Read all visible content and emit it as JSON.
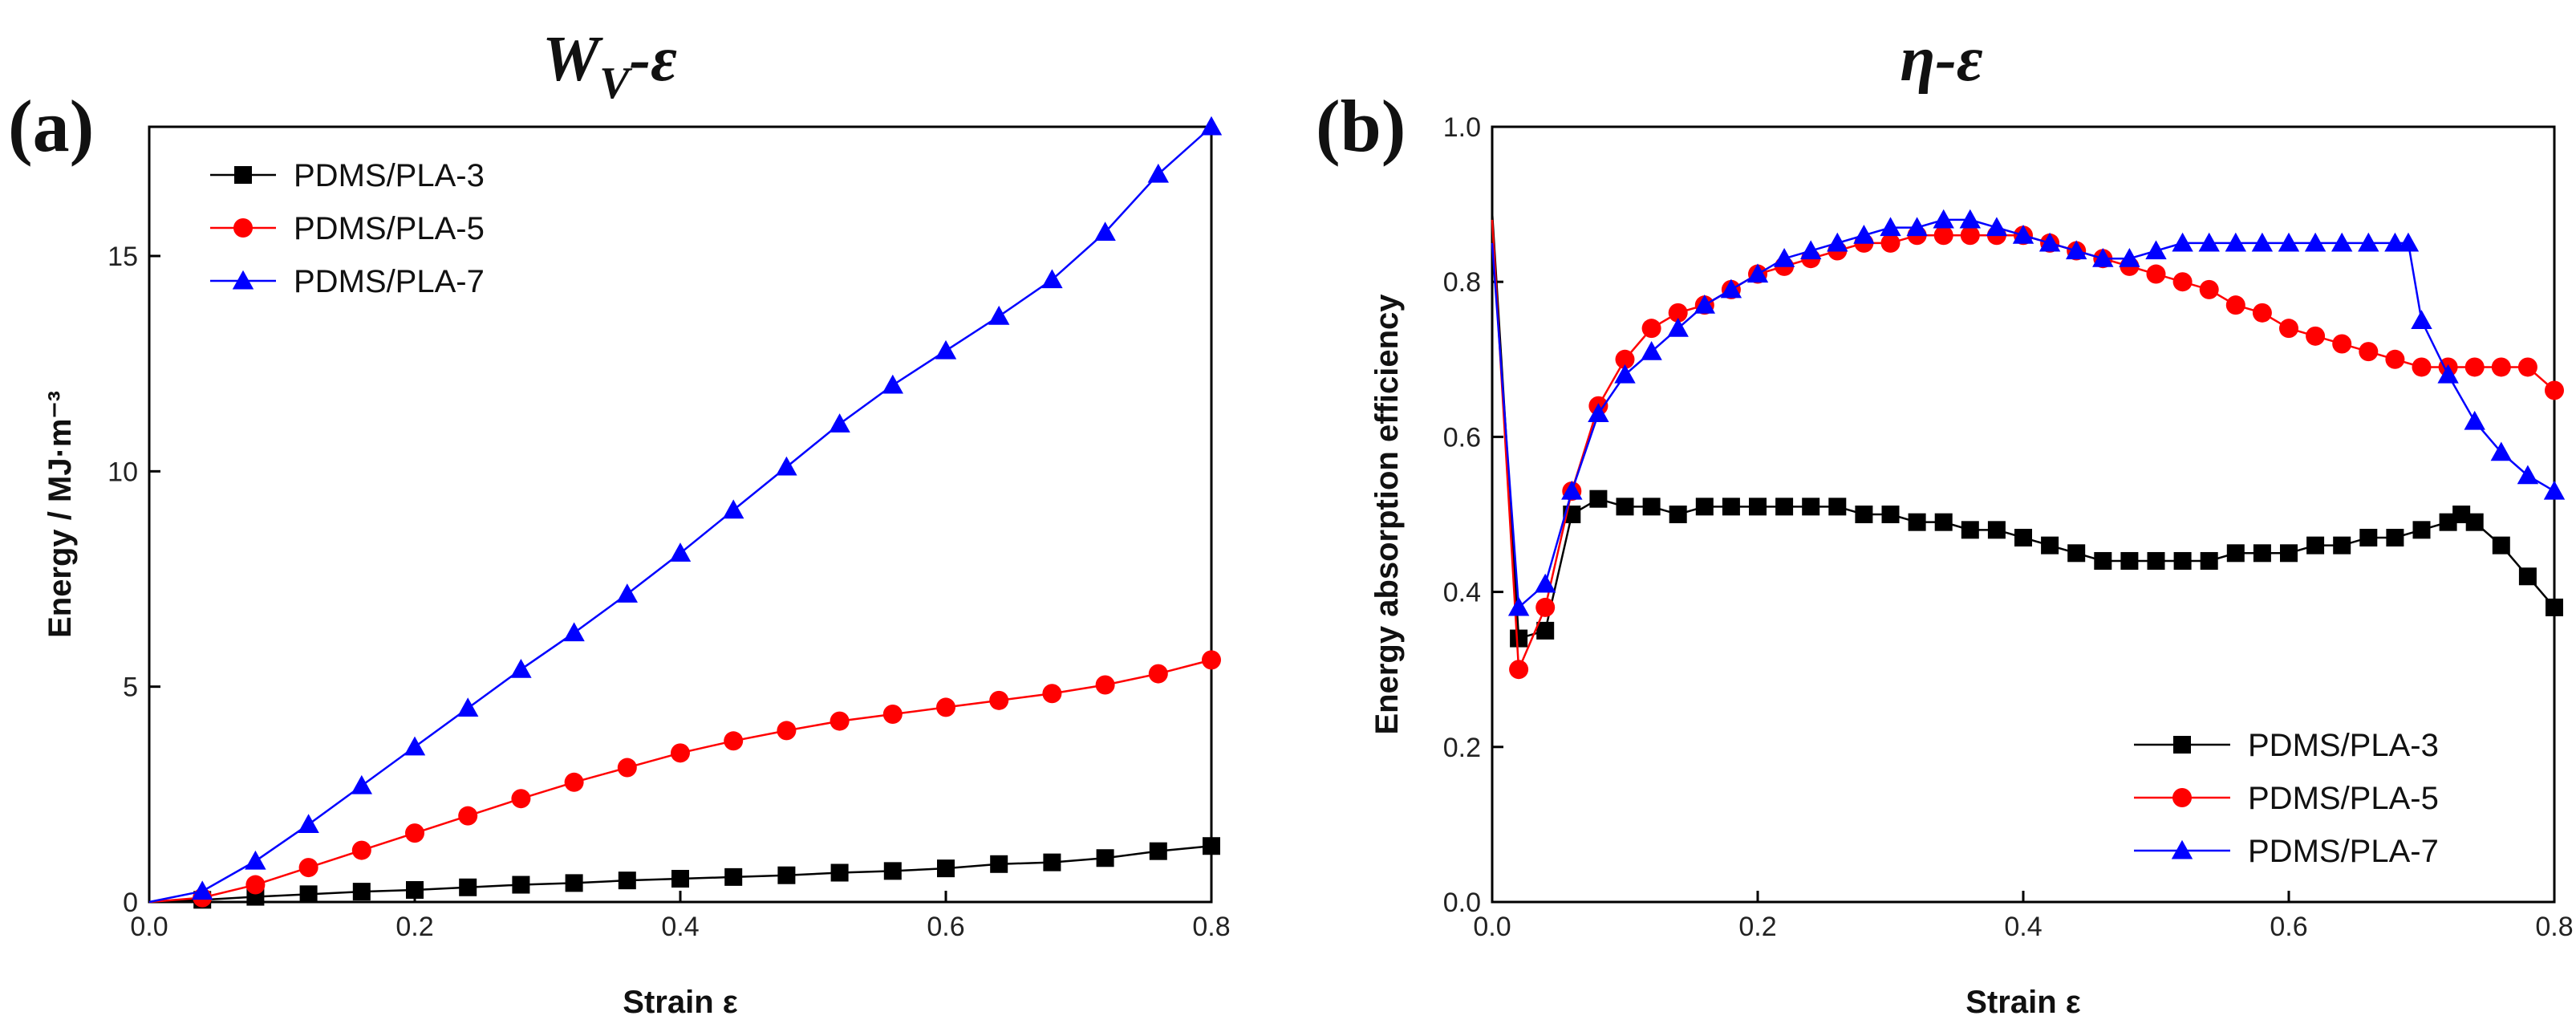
{
  "chart_data": [
    {
      "type": "line",
      "panel_tag": "(a)",
      "title": {
        "main": "W",
        "sub": "V",
        "suffix": "-ε"
      },
      "xlabel": "Strain ε",
      "ylabel": "Energy / MJ·m⁻³",
      "xlim": [
        0,
        0.8
      ],
      "ylim": [
        0,
        18
      ],
      "xticks": [
        0.0,
        0.2,
        0.4,
        0.6,
        0.8
      ],
      "xtick_labels": [
        "0.0",
        "0.2",
        "0.4",
        "0.6",
        "0.8"
      ],
      "yticks": [
        0,
        5,
        10,
        15
      ],
      "ytick_labels": [
        "0",
        "5",
        "10",
        "15"
      ],
      "grid": false,
      "legend": "top-left",
      "series": [
        {
          "name": "PDMS/PLA-3",
          "color": "#000000",
          "marker": "square",
          "x": [
            0,
            0.04,
            0.08,
            0.12,
            0.16,
            0.2,
            0.24,
            0.28,
            0.32,
            0.36,
            0.4,
            0.44,
            0.48,
            0.52,
            0.56,
            0.6,
            0.64,
            0.68,
            0.72,
            0.76,
            0.8
          ],
          "y": [
            0,
            0.05,
            0.12,
            0.18,
            0.24,
            0.28,
            0.34,
            0.4,
            0.44,
            0.5,
            0.54,
            0.58,
            0.62,
            0.68,
            0.72,
            0.78,
            0.88,
            0.92,
            1.02,
            1.18,
            1.3
          ]
        },
        {
          "name": "PDMS/PLA-5",
          "color": "#ff0000",
          "marker": "circle",
          "x": [
            0,
            0.04,
            0.08,
            0.12,
            0.16,
            0.2,
            0.24,
            0.28,
            0.32,
            0.36,
            0.4,
            0.44,
            0.48,
            0.52,
            0.56,
            0.6,
            0.64,
            0.68,
            0.72,
            0.76,
            0.8
          ],
          "y": [
            0,
            0.1,
            0.4,
            0.8,
            1.2,
            1.6,
            2.0,
            2.4,
            2.78,
            3.12,
            3.46,
            3.74,
            3.98,
            4.2,
            4.36,
            4.52,
            4.68,
            4.84,
            5.04,
            5.3,
            5.62
          ]
        },
        {
          "name": "PDMS/PLA-7",
          "color": "#0000ff",
          "marker": "triangle",
          "x": [
            0,
            0.04,
            0.08,
            0.12,
            0.16,
            0.2,
            0.24,
            0.28,
            0.32,
            0.36,
            0.4,
            0.44,
            0.48,
            0.52,
            0.56,
            0.6,
            0.64,
            0.68,
            0.72,
            0.76,
            0.8
          ],
          "y": [
            0,
            0.25,
            0.95,
            1.8,
            2.7,
            3.6,
            4.5,
            5.4,
            6.25,
            7.15,
            8.1,
            9.1,
            10.1,
            11.1,
            12.0,
            12.8,
            13.6,
            14.45,
            15.55,
            16.9,
            18.0
          ]
        }
      ]
    },
    {
      "type": "line",
      "panel_tag": "(b)",
      "title": {
        "main": "η",
        "sub": "",
        "suffix": "-ε"
      },
      "xlabel": "Strain ε",
      "ylabel": "Energy absorption efficiency",
      "xlim": [
        0,
        0.8
      ],
      "ylim": [
        0,
        1.0
      ],
      "xticks": [
        0.0,
        0.2,
        0.4,
        0.6,
        0.8
      ],
      "xtick_labels": [
        "0.0",
        "0.2",
        "0.4",
        "0.6",
        "0.8"
      ],
      "yticks": [
        0.0,
        0.2,
        0.4,
        0.6,
        0.8,
        1.0
      ],
      "ytick_labels": [
        "0.0",
        "0.2",
        "0.4",
        "0.6",
        "0.8",
        "1.0"
      ],
      "grid": false,
      "legend": "bottom-right",
      "series": [
        {
          "name": "PDMS/PLA-3",
          "color": "#000000",
          "marker": "square",
          "x": [
            0.0,
            0.02,
            0.04,
            0.06,
            0.08,
            0.1,
            0.12,
            0.14,
            0.16,
            0.18,
            0.2,
            0.22,
            0.24,
            0.26,
            0.28,
            0.3,
            0.32,
            0.34,
            0.36,
            0.38,
            0.4,
            0.42,
            0.44,
            0.46,
            0.48,
            0.5,
            0.52,
            0.54,
            0.56,
            0.58,
            0.6,
            0.62,
            0.64,
            0.66,
            0.68,
            0.7,
            0.72,
            0.73,
            0.74,
            0.76,
            0.78,
            0.8
          ],
          "y": [
            0.89,
            0.34,
            0.35,
            0.5,
            0.52,
            0.51,
            0.51,
            0.5,
            0.51,
            0.51,
            0.51,
            0.51,
            0.51,
            0.51,
            0.5,
            0.5,
            0.49,
            0.49,
            0.48,
            0.48,
            0.47,
            0.46,
            0.45,
            0.44,
            0.44,
            0.44,
            0.44,
            0.44,
            0.45,
            0.45,
            0.45,
            0.46,
            0.46,
            0.47,
            0.47,
            0.48,
            0.49,
            0.5,
            0.49,
            0.46,
            0.42,
            0.38
          ]
        },
        {
          "name": "PDMS/PLA-5",
          "color": "#ff0000",
          "marker": "circle",
          "x": [
            0.0,
            0.02,
            0.04,
            0.06,
            0.08,
            0.1,
            0.12,
            0.14,
            0.16,
            0.18,
            0.2,
            0.22,
            0.24,
            0.26,
            0.28,
            0.3,
            0.32,
            0.34,
            0.36,
            0.38,
            0.4,
            0.42,
            0.44,
            0.46,
            0.48,
            0.5,
            0.52,
            0.54,
            0.56,
            0.58,
            0.6,
            0.62,
            0.64,
            0.66,
            0.68,
            0.7,
            0.72,
            0.74,
            0.76,
            0.78,
            0.8
          ],
          "y": [
            0.88,
            0.3,
            0.38,
            0.53,
            0.64,
            0.7,
            0.74,
            0.76,
            0.77,
            0.79,
            0.81,
            0.82,
            0.83,
            0.84,
            0.85,
            0.85,
            0.86,
            0.86,
            0.86,
            0.86,
            0.86,
            0.85,
            0.84,
            0.83,
            0.82,
            0.81,
            0.8,
            0.79,
            0.77,
            0.76,
            0.74,
            0.73,
            0.72,
            0.71,
            0.7,
            0.69,
            0.69,
            0.69,
            0.69,
            0.69,
            0.66
          ]
        },
        {
          "name": "PDMS/PLA-7",
          "color": "#0000ff",
          "marker": "triangle",
          "x": [
            0.0,
            0.02,
            0.04,
            0.06,
            0.08,
            0.1,
            0.12,
            0.14,
            0.16,
            0.18,
            0.2,
            0.22,
            0.24,
            0.26,
            0.28,
            0.3,
            0.32,
            0.34,
            0.36,
            0.38,
            0.4,
            0.42,
            0.44,
            0.46,
            0.48,
            0.5,
            0.52,
            0.54,
            0.56,
            0.58,
            0.6,
            0.62,
            0.64,
            0.66,
            0.68,
            0.69,
            0.7,
            0.72,
            0.74,
            0.76,
            0.78,
            0.8
          ],
          "y": [
            0.85,
            0.38,
            0.41,
            0.53,
            0.63,
            0.68,
            0.71,
            0.74,
            0.77,
            0.79,
            0.81,
            0.83,
            0.84,
            0.85,
            0.86,
            0.87,
            0.87,
            0.88,
            0.88,
            0.87,
            0.86,
            0.85,
            0.84,
            0.83,
            0.83,
            0.84,
            0.85,
            0.85,
            0.85,
            0.85,
            0.85,
            0.85,
            0.85,
            0.85,
            0.85,
            0.85,
            0.75,
            0.68,
            0.62,
            0.58,
            0.55,
            0.53
          ]
        }
      ]
    }
  ]
}
